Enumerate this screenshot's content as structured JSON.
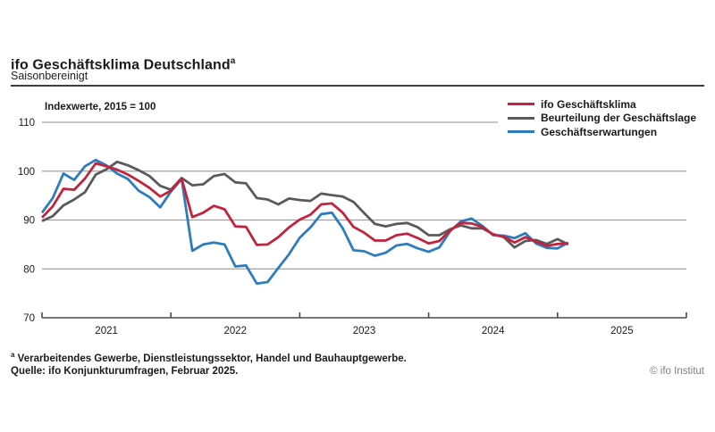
{
  "header": {
    "title": "ifo Geschäftsklima Deutschland",
    "title_superscript": "a",
    "subtitle": "Saisonbereinigt"
  },
  "footer": {
    "footnote_marker": "a",
    "footnote": "Verarbeitendes Gewerbe, Dienstleistungssektor, Handel und Bauhauptgewerbe.",
    "source": "Quelle: ifo Konjunkturumfragen, Februar 2025.",
    "copyright": "© ifo Institut"
  },
  "colors": {
    "klima": "#c3233c",
    "lage": "#5a5a5c",
    "erwartungen": "#2d7dbe",
    "grid": "#a0a0a0",
    "axis": "#4a4a4a",
    "text": "#1a1a1a"
  },
  "chart_data": {
    "type": "line",
    "title": "ifo Geschäftsklima Deutschland",
    "axis_note": "Indexwerte, 2015 = 100",
    "frequency": "monthly",
    "x_start": "2021-01",
    "x_end": "2025-02",
    "x_tick_labels": [
      "2021",
      "2022",
      "2023",
      "2024",
      "2025"
    ],
    "x_axis_years": 5,
    "ylim": [
      70,
      110
    ],
    "y_ticks": [
      110,
      100,
      90,
      80,
      70
    ],
    "grid": true,
    "legend_position": "top-right",
    "series": [
      {
        "name": "ifo Geschäftsklima",
        "key": "klima",
        "color": "#c3233c",
        "values": [
          90.5,
          92.8,
          96.4,
          96.2,
          98.5,
          101.6,
          101.0,
          100.3,
          99.3,
          98.0,
          96.6,
          94.8,
          96.0,
          98.5,
          90.6,
          91.5,
          92.9,
          92.2,
          88.7,
          88.6,
          84.9,
          85.0,
          86.5,
          88.5,
          90.1,
          91.1,
          93.2,
          93.4,
          91.5,
          88.6,
          87.4,
          85.8,
          85.8,
          86.9,
          87.2,
          86.3,
          85.2,
          85.7,
          87.9,
          89.4,
          89.3,
          88.6,
          87.0,
          86.6,
          85.4,
          86.5,
          85.6,
          84.7,
          85.1,
          85.2
        ]
      },
      {
        "name": "Beurteilung der Geschäftslage",
        "key": "lage",
        "color": "#5a5a5c",
        "values": [
          89.8,
          90.8,
          93.0,
          94.2,
          95.7,
          99.3,
          100.4,
          101.9,
          101.2,
          100.2,
          99.0,
          97.0,
          96.2,
          98.6,
          97.1,
          97.3,
          99.0,
          99.4,
          97.7,
          97.5,
          94.5,
          94.2,
          93.2,
          94.4,
          94.1,
          93.9,
          95.4,
          95.1,
          94.8,
          93.7,
          91.4,
          89.2,
          88.7,
          89.2,
          89.4,
          88.5,
          86.9,
          86.9,
          88.1,
          88.9,
          88.3,
          88.3,
          87.1,
          86.5,
          84.4,
          85.7,
          85.9,
          85.1,
          86.1,
          85.0
        ]
      },
      {
        "name": "Geschäftserwartungen",
        "key": "erwartungen",
        "color": "#2d7dbe",
        "values": [
          91.5,
          94.5,
          99.5,
          98.2,
          101.0,
          102.3,
          101.2,
          99.5,
          98.4,
          96.0,
          94.7,
          92.6,
          95.8,
          98.4,
          83.7,
          85.0,
          85.4,
          85.0,
          80.5,
          80.7,
          77.0,
          77.3,
          80.2,
          83.0,
          86.4,
          88.5,
          91.2,
          91.5,
          88.3,
          83.8,
          83.6,
          82.7,
          83.3,
          84.8,
          85.1,
          84.2,
          83.5,
          84.4,
          87.7,
          89.7,
          90.3,
          88.8,
          86.9,
          86.8,
          86.3,
          87.3,
          85.2,
          84.3,
          84.2,
          85.4
        ]
      }
    ]
  }
}
